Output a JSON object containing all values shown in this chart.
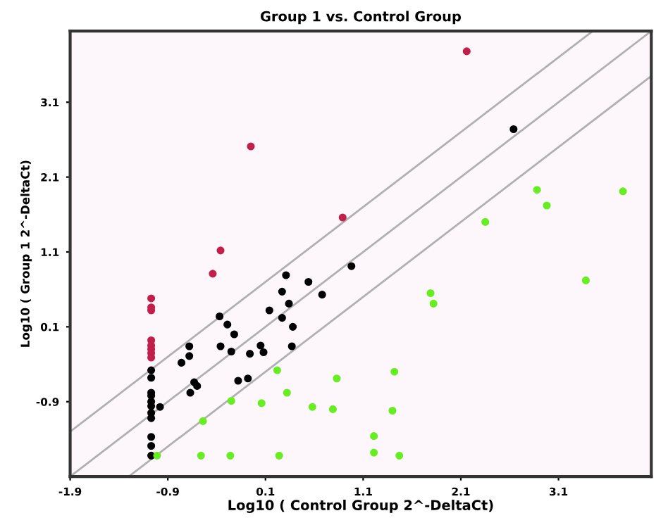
{
  "chart_data": {
    "type": "scatter",
    "title": "Group 1 vs. Control Group",
    "xlabel": "Log10 ( Control Group 2^-DeltaCt)",
    "ylabel": "Log10 ( Group 1 2^-DeltaCt)",
    "xlim": [
      -1.9,
      4.05
    ],
    "ylim": [
      -1.9,
      4.05
    ],
    "xticks": [
      -1.9,
      -0.9,
      0.1,
      1.1,
      2.1,
      3.1
    ],
    "yticks": [
      -0.9,
      0.1,
      1.1,
      2.1,
      3.1
    ],
    "grid": false,
    "legend": false,
    "series": [
      {
        "type": "line",
        "color": "#b0b0b0",
        "x": [
          -1.9,
          4.05
        ],
        "values": [
          -1.9,
          4.05
        ]
      },
      {
        "type": "line",
        "color": "#b0b0b0",
        "x": [
          -1.9,
          3.45
        ],
        "values": [
          -1.3,
          4.05
        ]
      },
      {
        "type": "line",
        "color": "#b0b0b0",
        "x": [
          -1.3,
          4.05
        ],
        "values": [
          -1.9,
          3.45
        ]
      },
      {
        "marker": "circle",
        "color": "#c0204a",
        "x": [
          2.16,
          -0.05,
          0.89,
          -0.36,
          -0.44,
          -1.07,
          -1.07,
          -1.07,
          -1.07,
          -1.07,
          -1.07,
          -1.07,
          -1.07
        ],
        "values": [
          3.78,
          2.51,
          1.56,
          1.12,
          0.81,
          0.48,
          0.36,
          0.32,
          -0.08,
          -0.15,
          -0.2,
          -0.25,
          -0.31
        ]
      },
      {
        "marker": "circle",
        "color": "#000000",
        "x": [
          -1.07,
          -1.07,
          -1.07,
          -1.07,
          -1.07,
          -1.07,
          -1.07,
          -1.07,
          -1.07,
          -1.07,
          -1.07,
          -0.98,
          -0.76,
          -0.68,
          -0.68,
          -0.63,
          -0.6,
          -0.67,
          -0.37,
          -0.29,
          -0.22,
          -0.36,
          -0.25,
          -0.18,
          -0.08,
          -0.06,
          0.05,
          0.08,
          0.14,
          0.27,
          0.31,
          0.34,
          0.27,
          0.38,
          0.37,
          0.54,
          0.68,
          0.98,
          2.64
        ],
        "values": [
          -0.48,
          -0.58,
          -0.78,
          -0.82,
          -0.9,
          -0.96,
          -1.05,
          -1.12,
          -1.37,
          -1.49,
          -1.62,
          -0.97,
          -0.38,
          -0.16,
          -0.29,
          -0.64,
          -0.69,
          -0.78,
          0.24,
          0.13,
          0.0,
          -0.16,
          -0.23,
          -0.62,
          -0.59,
          -0.26,
          -0.15,
          -0.24,
          0.32,
          0.57,
          0.79,
          0.41,
          0.22,
          0.1,
          -0.16,
          0.7,
          0.53,
          0.91,
          2.74
        ]
      },
      {
        "marker": "circle",
        "color": "#66ee22",
        "x": [
          -1.01,
          -0.56,
          -0.26,
          0.24,
          1.21,
          1.47,
          1.21,
          -0.54,
          -0.25,
          0.06,
          0.32,
          0.58,
          0.79,
          1.4,
          0.22,
          0.83,
          1.42,
          1.79,
          1.82,
          3.38,
          2.35,
          2.88,
          2.98,
          3.76
        ],
        "values": [
          -1.62,
          -1.62,
          -1.62,
          -1.62,
          -1.58,
          -1.62,
          -1.36,
          -1.16,
          -0.89,
          -0.92,
          -0.78,
          -0.97,
          -1.0,
          -1.02,
          -0.48,
          -0.59,
          -0.5,
          0.55,
          0.41,
          0.72,
          1.5,
          1.93,
          1.72,
          1.91
        ]
      }
    ]
  }
}
